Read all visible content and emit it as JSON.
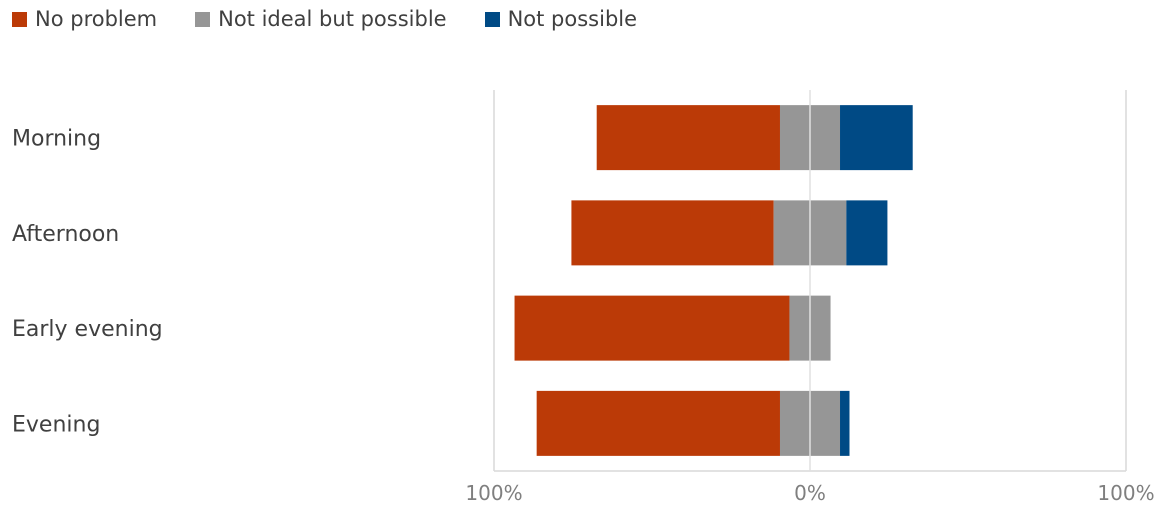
{
  "chart_data": {
    "type": "bar",
    "orientation": "horizontal",
    "stacking": "diverging",
    "categories": [
      "Morning",
      "Afternoon",
      "Early evening",
      "Evening"
    ],
    "series": [
      {
        "name": "No problem",
        "color": "#BB3A07",
        "side": "negative",
        "values": [
          58,
          64,
          87,
          77
        ]
      },
      {
        "name": "Not ideal but possible",
        "color": "#969696",
        "side": "split",
        "values": [
          19,
          23,
          13,
          19
        ]
      },
      {
        "name": "Not possible",
        "color": "#004A85",
        "side": "positive",
        "values": [
          23,
          13,
          0,
          3
        ]
      }
    ],
    "x_ticks": [
      "100%",
      "0%",
      "100%"
    ],
    "xlim": [
      -100,
      100
    ],
    "legend_position": "top-left",
    "grid": true
  }
}
